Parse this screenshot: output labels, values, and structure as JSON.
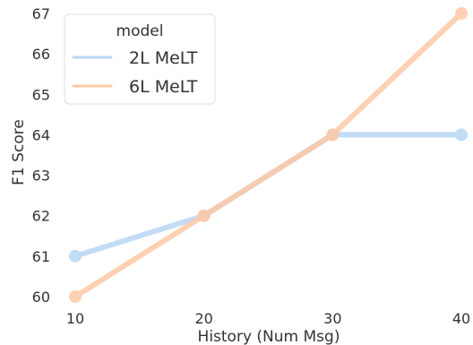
{
  "chart_data": {
    "type": "line",
    "x": [
      10,
      20,
      30,
      40
    ],
    "series": [
      {
        "name": "2L MeLT",
        "values": [
          61,
          62,
          64,
          64
        ],
        "color": "#b9d6f5"
      },
      {
        "name": "6L MeLT",
        "values": [
          60,
          62,
          64,
          67
        ],
        "color": "#ffc8a5"
      }
    ],
    "xlabel": "History (Num Msg)",
    "ylabel": "F1 Score",
    "xticks": [
      10,
      20,
      30,
      40
    ],
    "yticks": [
      60,
      61,
      62,
      63,
      64,
      65,
      66,
      67
    ],
    "xlim": [
      10,
      40
    ],
    "ylim": [
      59.8,
      67.2
    ],
    "grid": false,
    "legend": {
      "title": "model",
      "position": "top-left"
    }
  }
}
